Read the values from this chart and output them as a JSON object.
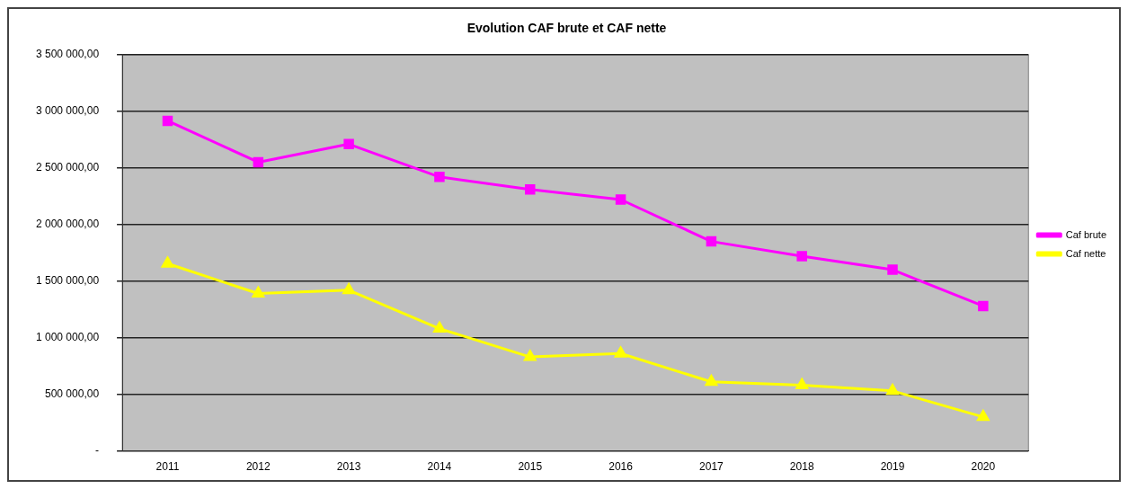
{
  "chart_data": {
    "type": "line",
    "title": "Evolution CAF brute et CAF nette",
    "categories": [
      "2011",
      "2012",
      "2013",
      "2014",
      "2015",
      "2016",
      "2017",
      "2018",
      "2019",
      "2020"
    ],
    "series": [
      {
        "name": "Caf brute",
        "color": "#ff00ff",
        "marker": "square",
        "values": [
          2915000,
          2550000,
          2710000,
          2420000,
          2310000,
          2220000,
          1850000,
          1720000,
          1600000,
          1280000
        ]
      },
      {
        "name": "Caf nette",
        "color": "#ffff00",
        "marker": "triangle",
        "values": [
          1654000,
          1390000,
          1420000,
          1080000,
          830000,
          860000,
          610000,
          580000,
          530000,
          300000
        ]
      }
    ],
    "ylim": [
      0,
      3500000
    ],
    "yticks": [
      {
        "value": 0,
        "label": "-"
      },
      {
        "value": 500000,
        "label": "500 000,00"
      },
      {
        "value": 1000000,
        "label": "1 000 000,00"
      },
      {
        "value": 1500000,
        "label": "1 500 000,00"
      },
      {
        "value": 2000000,
        "label": "2 000 000,00"
      },
      {
        "value": 2500000,
        "label": "2 500 000,00"
      },
      {
        "value": 3000000,
        "label": "3 000 000,00"
      },
      {
        "value": 3500000,
        "label": "3 500 000,00"
      }
    ],
    "grid": "y",
    "legend": "right",
    "line_style": "solid"
  }
}
